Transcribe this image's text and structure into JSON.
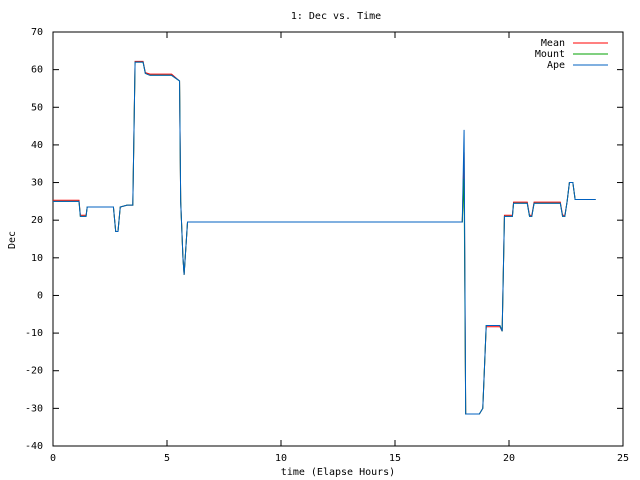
{
  "chart_data": {
    "type": "line",
    "title": "1: Dec vs. Time",
    "xlabel": "time (Elapse Hours)",
    "ylabel": "Dec",
    "x": [
      0,
      1.14,
      1.2,
      1.45,
      1.5,
      2.65,
      2.75,
      2.85,
      2.95,
      3.25,
      3.5,
      3.6,
      3.95,
      4.05,
      4.25,
      5.2,
      5.55,
      5.6,
      5.7,
      5.75,
      5.9,
      17.95,
      18.03,
      18.1,
      18.2,
      18.7,
      18.85,
      19.0,
      19.6,
      19.7,
      19.8,
      20.15,
      20.2,
      20.8,
      20.9,
      21.0,
      21.1,
      22.25,
      22.35,
      22.45,
      22.55,
      22.65,
      22.8,
      22.9,
      23.8
    ],
    "series": [
      {
        "name": "Mean",
        "color": "#ff0000",
        "values": [
          25.3,
          25.3,
          21.3,
          21.3,
          23.5,
          23.5,
          17,
          17,
          23.5,
          24,
          24,
          62.2,
          62.2,
          59.2,
          58.8,
          58.8,
          57,
          25,
          10,
          5.5,
          19.5,
          19.5,
          38,
          -31.5,
          -31.5,
          -31.5,
          -30,
          -8.3,
          -8.3,
          -9.5,
          21.3,
          21.3,
          24.8,
          24.8,
          21.3,
          21.3,
          24.8,
          24.8,
          21.3,
          21.3,
          25,
          30,
          30,
          25.5,
          25.5
        ]
      },
      {
        "name": "Mount",
        "color": "#00a000",
        "values": [
          25,
          25,
          21,
          21,
          23.5,
          23.5,
          17,
          17,
          23.5,
          24,
          24,
          62,
          62,
          59,
          58.5,
          58.5,
          57,
          25,
          10,
          5.5,
          19.5,
          19.5,
          31,
          -31.5,
          -31.5,
          -31.5,
          -30,
          -8,
          -8,
          -9.5,
          21,
          21,
          24.5,
          24.5,
          21,
          21,
          24.5,
          24.5,
          21,
          21,
          25,
          30,
          30,
          25.5,
          25.5
        ]
      },
      {
        "name": "Ape",
        "color": "#0060c0",
        "values": [
          25,
          25,
          21,
          21,
          23.5,
          23.5,
          17,
          17,
          23.5,
          24,
          24,
          62,
          62,
          59,
          58.5,
          58.5,
          57,
          25,
          10,
          5.5,
          19.5,
          19.5,
          44,
          -31.5,
          -31.5,
          -31.5,
          -30,
          -8,
          -8,
          -9.5,
          21,
          21,
          24.5,
          24.5,
          21,
          21,
          24.5,
          24.5,
          21,
          21,
          25,
          30,
          30,
          25.5,
          25.5
        ]
      }
    ],
    "xlim": [
      0,
      25
    ],
    "xticks": [
      0,
      5,
      10,
      15,
      20,
      25
    ],
    "ylim": [
      -40,
      70
    ],
    "yticks": [
      -40,
      -30,
      -20,
      -10,
      0,
      10,
      20,
      30,
      40,
      50,
      60,
      70
    ],
    "grid": false,
    "legend": "top-right"
  }
}
